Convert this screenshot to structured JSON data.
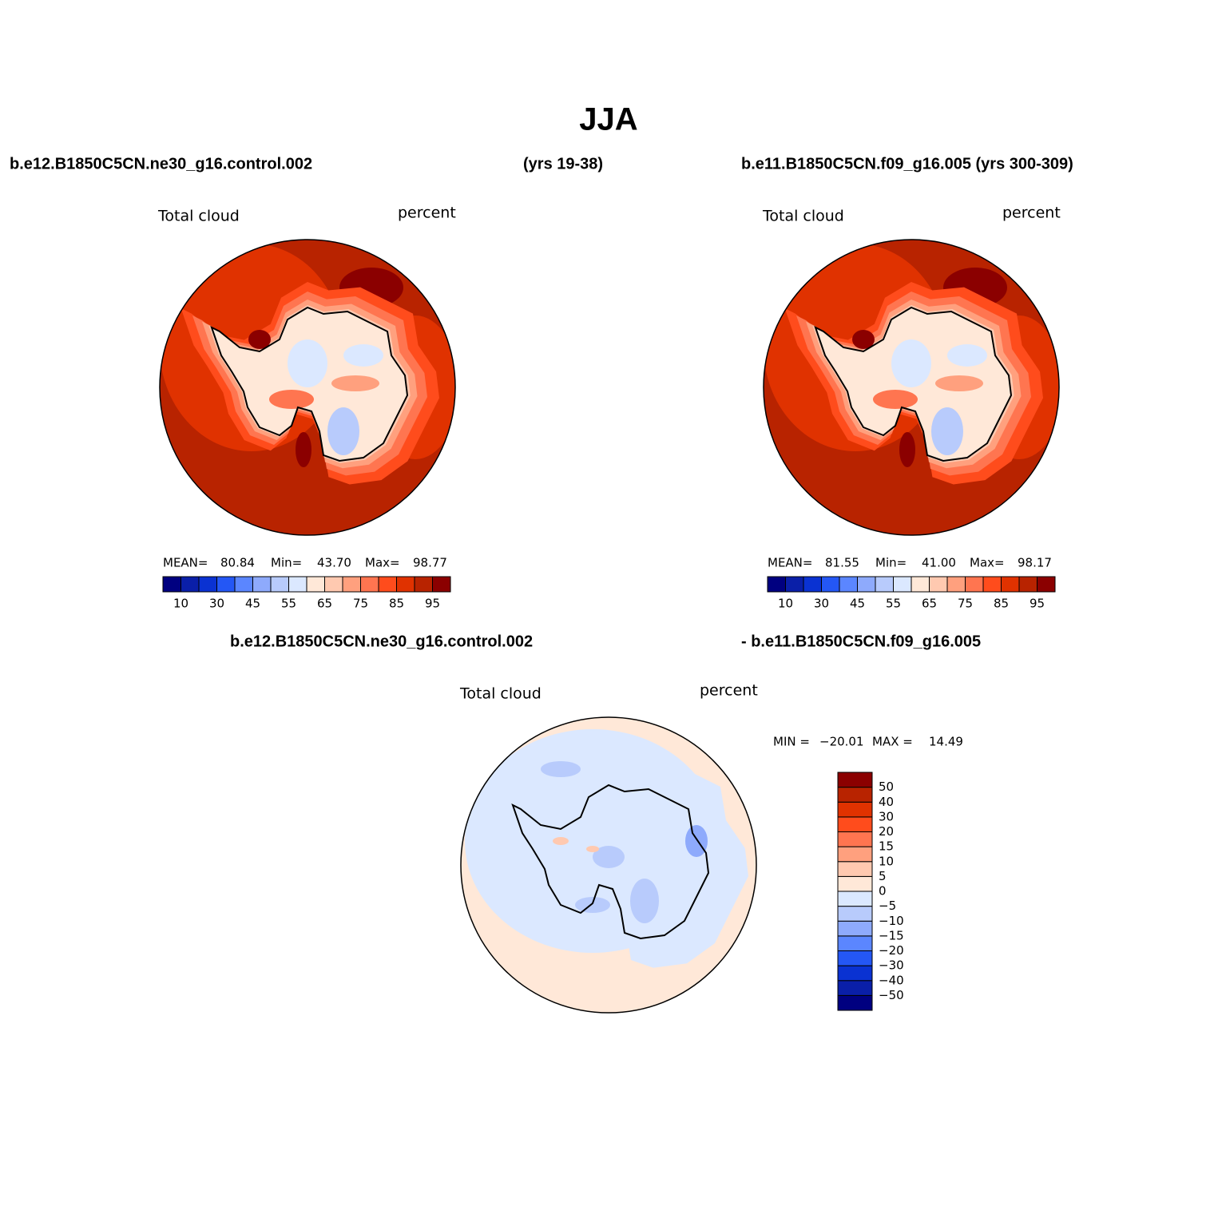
{
  "title": "JJA",
  "panels": [
    {
      "case": "b.e12.B1850C5CN.ne30_g16.control.002",
      "years": "(yrs 19-38)",
      "variable": "Total cloud",
      "units": "percent",
      "stats": [
        "MEAN=",
        "80.84",
        "Min=",
        "43.70",
        "Max=",
        "98.77"
      ]
    },
    {
      "case": "b.e11.B1850C5CN.f09_g16.005 (yrs 300-309)",
      "variable": "Total cloud",
      "units": "percent",
      "stats": [
        "MEAN=",
        "81.55",
        "Min=",
        "41.00",
        "Max=",
        "98.17"
      ]
    }
  ],
  "colorbar": {
    "colors": [
      "#000080",
      "#0a1fa8",
      "#0a32d2",
      "#2457f5",
      "#5b86ff",
      "#8eaafc",
      "#b8cbfc",
      "#dbe8ff",
      "#ffe8d8",
      "#ffc9b0",
      "#ffa07e",
      "#ff7550",
      "#ff4c1c",
      "#e03200",
      "#b82300",
      "#8b0000"
    ],
    "labels": [
      10,
      30,
      45,
      55,
      65,
      75,
      85,
      95
    ]
  },
  "diff_panel": {
    "case": "b.e12.B1850C5CN.ne30_g16.control.002",
    "minus": "- b.e11.B1850C5CN.f09_g16.005",
    "variable": "Total cloud",
    "units": "percent",
    "stats": [
      "MIN =",
      "−20.01",
      "MAX =",
      "14.49"
    ]
  },
  "diff_colorbar": {
    "colors": [
      "#000080",
      "#0a1fa8",
      "#0a32d2",
      "#2457f5",
      "#5b86ff",
      "#8eaafc",
      "#b8cbfc",
      "#dbe8ff",
      "#ffe8d8",
      "#ffc9b0",
      "#ffa07e",
      "#ff7550",
      "#ff4c1c",
      "#e03200",
      "#b82300",
      "#8b0000"
    ],
    "labels": [
      50,
      40,
      30,
      20,
      15,
      10,
      5,
      0,
      {
        "value": -5,
        "label": "−5"
      },
      {
        "value": -10,
        "label": "−10"
      },
      {
        "value": -15,
        "label": "−15"
      },
      {
        "value": -20,
        "label": "−20"
      },
      {
        "value": -30,
        "label": "−30"
      },
      {
        "value": -40,
        "label": "−40"
      },
      {
        "value": -50,
        "label": "−50"
      }
    ]
  }
}
